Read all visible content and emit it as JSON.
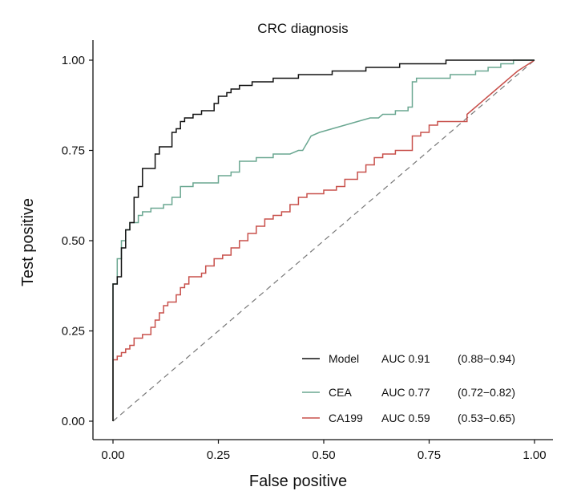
{
  "chart_data": {
    "type": "line",
    "title": "CRC diagnosis",
    "xlabel": "False positive",
    "ylabel": "Test positive",
    "xlim": [
      0,
      1
    ],
    "ylim": [
      0,
      1
    ],
    "xticks": [
      "0.00",
      "0.25",
      "0.50",
      "0.75",
      "1.00"
    ],
    "yticks": [
      "0.00",
      "0.25",
      "0.50",
      "0.75",
      "1.00"
    ],
    "xtick_values": [
      0,
      0.25,
      0.5,
      0.75,
      1
    ],
    "ytick_values": [
      0,
      0.25,
      0.5,
      0.75,
      1
    ],
    "legend_position": "bottom-right",
    "reference_line": {
      "x": [
        0,
        1
      ],
      "y": [
        0,
        1
      ],
      "style": "dashed",
      "color": "#777777"
    },
    "series": [
      {
        "name": "Model",
        "auc": "AUC 0.91",
        "ci": "(0.88−0.94)",
        "color": "#111111",
        "points": [
          [
            0,
            0
          ],
          [
            0,
            0.38
          ],
          [
            0.01,
            0.38
          ],
          [
            0.01,
            0.4
          ],
          [
            0.02,
            0.4
          ],
          [
            0.02,
            0.48
          ],
          [
            0.03,
            0.48
          ],
          [
            0.03,
            0.53
          ],
          [
            0.04,
            0.53
          ],
          [
            0.04,
            0.55
          ],
          [
            0.05,
            0.55
          ],
          [
            0.05,
            0.62
          ],
          [
            0.06,
            0.62
          ],
          [
            0.06,
            0.65
          ],
          [
            0.07,
            0.65
          ],
          [
            0.07,
            0.7
          ],
          [
            0.1,
            0.7
          ],
          [
            0.1,
            0.74
          ],
          [
            0.11,
            0.74
          ],
          [
            0.11,
            0.76
          ],
          [
            0.14,
            0.76
          ],
          [
            0.14,
            0.8
          ],
          [
            0.15,
            0.8
          ],
          [
            0.15,
            0.81
          ],
          [
            0.16,
            0.81
          ],
          [
            0.16,
            0.83
          ],
          [
            0.17,
            0.83
          ],
          [
            0.17,
            0.84
          ],
          [
            0.19,
            0.84
          ],
          [
            0.19,
            0.85
          ],
          [
            0.21,
            0.85
          ],
          [
            0.21,
            0.86
          ],
          [
            0.24,
            0.86
          ],
          [
            0.24,
            0.88
          ],
          [
            0.25,
            0.88
          ],
          [
            0.25,
            0.9
          ],
          [
            0.27,
            0.9
          ],
          [
            0.27,
            0.91
          ],
          [
            0.28,
            0.91
          ],
          [
            0.28,
            0.92
          ],
          [
            0.3,
            0.92
          ],
          [
            0.3,
            0.93
          ],
          [
            0.33,
            0.93
          ],
          [
            0.33,
            0.94
          ],
          [
            0.38,
            0.94
          ],
          [
            0.38,
            0.95
          ],
          [
            0.44,
            0.95
          ],
          [
            0.44,
            0.96
          ],
          [
            0.52,
            0.96
          ],
          [
            0.52,
            0.97
          ],
          [
            0.6,
            0.97
          ],
          [
            0.6,
            0.98
          ],
          [
            0.68,
            0.98
          ],
          [
            0.68,
            0.99
          ],
          [
            0.79,
            0.99
          ],
          [
            0.79,
            1.0
          ],
          [
            1.0,
            1.0
          ]
        ]
      },
      {
        "name": "CEA",
        "auc": "AUC 0.77",
        "ci": "(0.72−0.82)",
        "color": "#6aa791",
        "points": [
          [
            0,
            0
          ],
          [
            0,
            0.38
          ],
          [
            0.01,
            0.38
          ],
          [
            0.01,
            0.45
          ],
          [
            0.02,
            0.45
          ],
          [
            0.02,
            0.5
          ],
          [
            0.03,
            0.5
          ],
          [
            0.03,
            0.53
          ],
          [
            0.04,
            0.53
          ],
          [
            0.04,
            0.55
          ],
          [
            0.06,
            0.55
          ],
          [
            0.06,
            0.57
          ],
          [
            0.07,
            0.57
          ],
          [
            0.07,
            0.58
          ],
          [
            0.09,
            0.58
          ],
          [
            0.09,
            0.59
          ],
          [
            0.12,
            0.59
          ],
          [
            0.12,
            0.6
          ],
          [
            0.14,
            0.6
          ],
          [
            0.14,
            0.62
          ],
          [
            0.16,
            0.62
          ],
          [
            0.16,
            0.65
          ],
          [
            0.19,
            0.65
          ],
          [
            0.19,
            0.66
          ],
          [
            0.25,
            0.66
          ],
          [
            0.25,
            0.68
          ],
          [
            0.28,
            0.68
          ],
          [
            0.28,
            0.69
          ],
          [
            0.3,
            0.69
          ],
          [
            0.3,
            0.72
          ],
          [
            0.34,
            0.72
          ],
          [
            0.34,
            0.73
          ],
          [
            0.38,
            0.73
          ],
          [
            0.38,
            0.74
          ],
          [
            0.42,
            0.74
          ],
          [
            0.44,
            0.75
          ],
          [
            0.45,
            0.75
          ],
          [
            0.46,
            0.77
          ],
          [
            0.47,
            0.79
          ],
          [
            0.49,
            0.8
          ],
          [
            0.52,
            0.81
          ],
          [
            0.55,
            0.82
          ],
          [
            0.58,
            0.83
          ],
          [
            0.61,
            0.84
          ],
          [
            0.63,
            0.84
          ],
          [
            0.64,
            0.85
          ],
          [
            0.67,
            0.85
          ],
          [
            0.67,
            0.86
          ],
          [
            0.7,
            0.86
          ],
          [
            0.7,
            0.87
          ],
          [
            0.71,
            0.87
          ],
          [
            0.71,
            0.94
          ],
          [
            0.72,
            0.94
          ],
          [
            0.72,
            0.95
          ],
          [
            0.8,
            0.95
          ],
          [
            0.8,
            0.96
          ],
          [
            0.86,
            0.96
          ],
          [
            0.86,
            0.97
          ],
          [
            0.89,
            0.97
          ],
          [
            0.89,
            0.98
          ],
          [
            0.92,
            0.98
          ],
          [
            0.92,
            0.99
          ],
          [
            0.95,
            0.99
          ],
          [
            0.95,
            1.0
          ],
          [
            1.0,
            1.0
          ]
        ]
      },
      {
        "name": "CA199",
        "auc": "AUC 0.59",
        "ci": "(0.53−0.65)",
        "color": "#c8504b",
        "points": [
          [
            0,
            0
          ],
          [
            0,
            0.17
          ],
          [
            0.01,
            0.17
          ],
          [
            0.01,
            0.18
          ],
          [
            0.02,
            0.18
          ],
          [
            0.02,
            0.19
          ],
          [
            0.03,
            0.19
          ],
          [
            0.03,
            0.2
          ],
          [
            0.04,
            0.2
          ],
          [
            0.04,
            0.21
          ],
          [
            0.05,
            0.21
          ],
          [
            0.05,
            0.23
          ],
          [
            0.07,
            0.23
          ],
          [
            0.07,
            0.24
          ],
          [
            0.09,
            0.24
          ],
          [
            0.09,
            0.26
          ],
          [
            0.1,
            0.26
          ],
          [
            0.1,
            0.28
          ],
          [
            0.11,
            0.28
          ],
          [
            0.11,
            0.3
          ],
          [
            0.12,
            0.3
          ],
          [
            0.12,
            0.32
          ],
          [
            0.13,
            0.32
          ],
          [
            0.13,
            0.33
          ],
          [
            0.15,
            0.33
          ],
          [
            0.15,
            0.35
          ],
          [
            0.16,
            0.35
          ],
          [
            0.16,
            0.37
          ],
          [
            0.17,
            0.37
          ],
          [
            0.17,
            0.38
          ],
          [
            0.18,
            0.38
          ],
          [
            0.18,
            0.4
          ],
          [
            0.21,
            0.4
          ],
          [
            0.21,
            0.41
          ],
          [
            0.22,
            0.41
          ],
          [
            0.22,
            0.43
          ],
          [
            0.24,
            0.43
          ],
          [
            0.24,
            0.45
          ],
          [
            0.26,
            0.45
          ],
          [
            0.26,
            0.46
          ],
          [
            0.28,
            0.46
          ],
          [
            0.28,
            0.48
          ],
          [
            0.3,
            0.48
          ],
          [
            0.3,
            0.5
          ],
          [
            0.32,
            0.5
          ],
          [
            0.32,
            0.52
          ],
          [
            0.34,
            0.52
          ],
          [
            0.34,
            0.54
          ],
          [
            0.36,
            0.54
          ],
          [
            0.36,
            0.56
          ],
          [
            0.38,
            0.56
          ],
          [
            0.38,
            0.57
          ],
          [
            0.4,
            0.57
          ],
          [
            0.4,
            0.58
          ],
          [
            0.42,
            0.58
          ],
          [
            0.42,
            0.6
          ],
          [
            0.44,
            0.6
          ],
          [
            0.44,
            0.62
          ],
          [
            0.46,
            0.62
          ],
          [
            0.46,
            0.63
          ],
          [
            0.5,
            0.63
          ],
          [
            0.5,
            0.64
          ],
          [
            0.53,
            0.64
          ],
          [
            0.53,
            0.65
          ],
          [
            0.55,
            0.65
          ],
          [
            0.55,
            0.67
          ],
          [
            0.58,
            0.67
          ],
          [
            0.58,
            0.69
          ],
          [
            0.6,
            0.69
          ],
          [
            0.6,
            0.71
          ],
          [
            0.62,
            0.71
          ],
          [
            0.62,
            0.73
          ],
          [
            0.64,
            0.73
          ],
          [
            0.64,
            0.74
          ],
          [
            0.67,
            0.74
          ],
          [
            0.67,
            0.75
          ],
          [
            0.71,
            0.75
          ],
          [
            0.71,
            0.79
          ],
          [
            0.73,
            0.79
          ],
          [
            0.73,
            0.8
          ],
          [
            0.75,
            0.8
          ],
          [
            0.75,
            0.82
          ],
          [
            0.77,
            0.82
          ],
          [
            0.77,
            0.83
          ],
          [
            0.84,
            0.83
          ],
          [
            0.84,
            0.85
          ],
          [
            0.86,
            0.87
          ],
          [
            0.9,
            0.91
          ],
          [
            0.93,
            0.94
          ],
          [
            0.96,
            0.97
          ],
          [
            1.0,
            1.0
          ]
        ]
      }
    ]
  }
}
